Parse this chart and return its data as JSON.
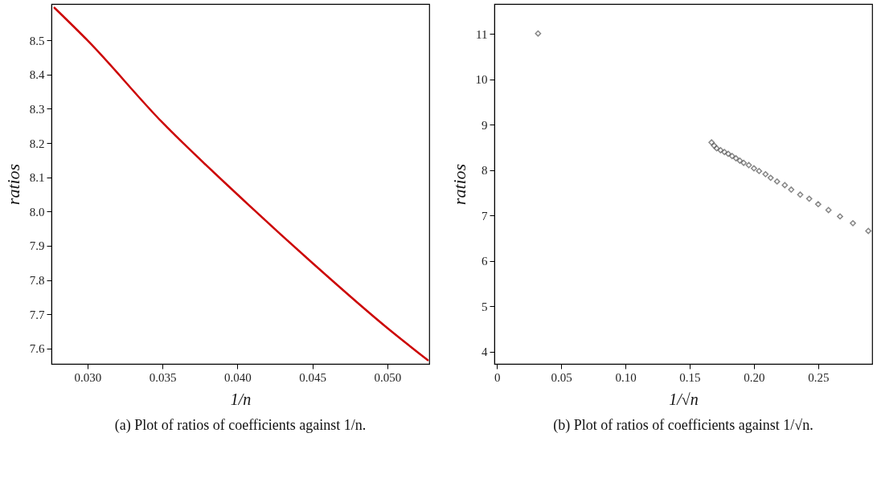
{
  "chart_data": [
    {
      "type": "line",
      "xlabel": "1/n",
      "ylabel": "ratios",
      "x": [
        0.0278,
        0.03,
        0.035,
        0.04,
        0.045,
        0.05,
        0.0527
      ],
      "series": [
        {
          "color": "#cc0000",
          "values": [
            8.595,
            8.5,
            8.26,
            8.05,
            7.85,
            7.66,
            7.566
          ]
        }
      ],
      "xlim": [
        0.0276,
        0.0528
      ],
      "ylim": [
        7.555,
        8.606
      ],
      "xticks": [
        {
          "value": 0.03,
          "label": "0.030"
        },
        0.035,
        {
          "value": 0.04,
          "label": "0.040"
        },
        0.045,
        {
          "value": 0.05,
          "label": "0.050"
        }
      ],
      "yticks": [
        7.6,
        7.7,
        7.8,
        7.9,
        {
          "value": 8,
          "label": "8.0"
        },
        8.1,
        8.2,
        8.3,
        8.4,
        8.5
      ],
      "grid": false,
      "marker": "none",
      "line_style": "solid",
      "annotations": [
        "(a) Plot of ratios of coefficients against 1/n."
      ]
    },
    {
      "type": "scatter",
      "xlabel": "1/√n",
      "ylabel": "ratios",
      "x": [
        0.032,
        0.167,
        0.169,
        0.171,
        0.174,
        0.177,
        0.18,
        0.183,
        0.186,
        0.189,
        0.192,
        0.196,
        0.2,
        0.204,
        0.209,
        0.213,
        0.218,
        0.224,
        0.229,
        0.236,
        0.243,
        0.25,
        0.258,
        0.267,
        0.277,
        0.289
      ],
      "series": [
        {
          "color": "#555555",
          "values": [
            11.01,
            8.61,
            8.54,
            8.48,
            8.44,
            8.4,
            8.36,
            8.31,
            8.26,
            8.21,
            8.16,
            8.11,
            8.04,
            7.98,
            7.91,
            7.83,
            7.75,
            7.67,
            7.57,
            7.46,
            7.37,
            7.25,
            7.12,
            6.98,
            6.83,
            6.66
          ]
        }
      ],
      "xlim": [
        -0.002,
        0.292
      ],
      "ylim": [
        3.73,
        11.66
      ],
      "xticks": [
        0,
        {
          "value": 0.05,
          "label": "0.05"
        },
        {
          "value": 0.1,
          "label": "0.10"
        },
        {
          "value": 0.15,
          "label": "0.15"
        },
        {
          "value": 0.2,
          "label": "0.20"
        },
        {
          "value": 0.25,
          "label": "0.25"
        }
      ],
      "yticks": [
        4,
        5,
        6,
        7,
        8,
        9,
        10,
        11
      ],
      "grid": false,
      "marker": "diamond",
      "annotations": [
        "(b) Plot of ratios of coefficients against 1/√n."
      ]
    }
  ]
}
